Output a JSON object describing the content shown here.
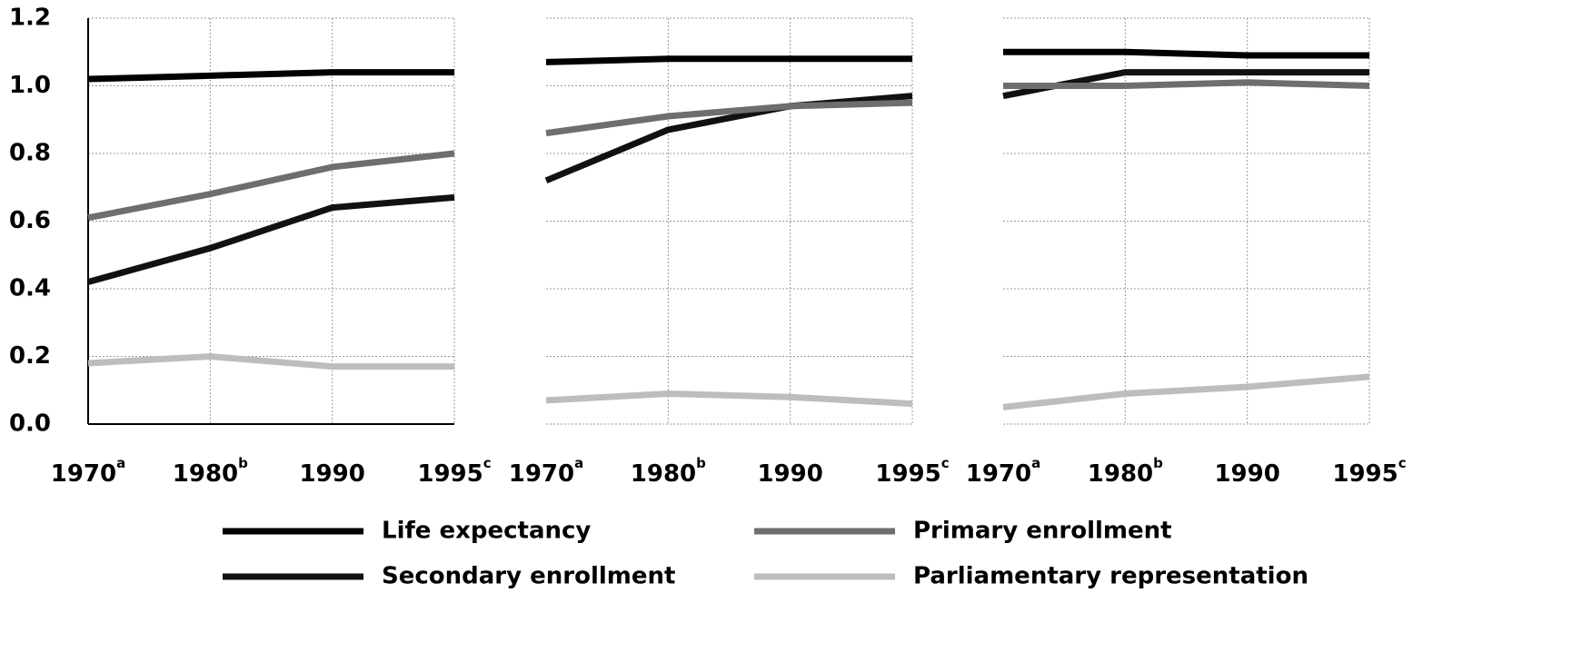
{
  "chart_data": [
    {
      "type": "line",
      "categories": [
        "1970",
        "1980",
        "1990",
        "1995"
      ],
      "category_notes": [
        "a",
        "b",
        null,
        "c"
      ],
      "ylim": [
        0,
        1.2
      ],
      "yticks": [
        {
          "value": 0,
          "label": "0.0"
        },
        0.2,
        0.4,
        0.6,
        0.8,
        {
          "value": 1,
          "label": "1.0"
        },
        1.2
      ],
      "show_ytick_labels": true,
      "grid": true,
      "series": [
        {
          "name": "Life expectancy",
          "color": "#000000",
          "values": [
            1.02,
            1.03,
            1.04,
            1.04
          ]
        },
        {
          "name": "Primary enrollment",
          "color": "#6e6e6e",
          "values": [
            0.61,
            0.68,
            0.76,
            0.8
          ]
        },
        {
          "name": "Secondary enrollment",
          "color": "#111111",
          "values": [
            0.42,
            0.52,
            0.64,
            0.67
          ]
        },
        {
          "name": "Parliamentary representation",
          "color": "#bdbdbd",
          "values": [
            0.18,
            0.2,
            0.17,
            0.17
          ]
        }
      ]
    },
    {
      "type": "line",
      "categories": [
        "1970",
        "1980",
        "1990",
        "1995"
      ],
      "category_notes": [
        "a",
        "b",
        null,
        "c"
      ],
      "ylim": [
        0,
        1.2
      ],
      "yticks": [
        {
          "value": 0,
          "label": "0.0"
        },
        0.2,
        0.4,
        0.6,
        0.8,
        {
          "value": 1,
          "label": "1.0"
        },
        1.2
      ],
      "show_ytick_labels": false,
      "grid": true,
      "series": [
        {
          "name": "Life expectancy",
          "color": "#000000",
          "values": [
            1.07,
            1.08,
            1.08,
            1.08
          ]
        },
        {
          "name": "Primary enrollment",
          "color": "#6e6e6e",
          "values": [
            0.86,
            0.91,
            0.94,
            0.95
          ]
        },
        {
          "name": "Secondary enrollment",
          "color": "#111111",
          "values": [
            0.72,
            0.87,
            0.94,
            0.97
          ]
        },
        {
          "name": "Parliamentary representation",
          "color": "#bdbdbd",
          "values": [
            0.07,
            0.09,
            0.08,
            0.06
          ]
        }
      ]
    },
    {
      "type": "line",
      "categories": [
        "1970",
        "1980",
        "1990",
        "1995"
      ],
      "category_notes": [
        "a",
        "b",
        null,
        "c"
      ],
      "ylim": [
        0,
        1.2
      ],
      "yticks": [
        {
          "value": 0,
          "label": "0.0"
        },
        0.2,
        0.4,
        0.6,
        0.8,
        {
          "value": 1,
          "label": "1.0"
        },
        1.2
      ],
      "show_ytick_labels": false,
      "grid": true,
      "series": [
        {
          "name": "Life expectancy",
          "color": "#000000",
          "values": [
            1.1,
            1.1,
            1.09,
            1.09
          ]
        },
        {
          "name": "Primary enrollment",
          "color": "#6e6e6e",
          "values": [
            1.0,
            1.0,
            1.01,
            1.0
          ]
        },
        {
          "name": "Secondary enrollment",
          "color": "#111111",
          "values": [
            0.97,
            1.04,
            1.04,
            1.04
          ]
        },
        {
          "name": "Parliamentary representation",
          "color": "#bdbdbd",
          "values": [
            0.05,
            0.09,
            0.11,
            0.14
          ]
        }
      ]
    }
  ]
}
